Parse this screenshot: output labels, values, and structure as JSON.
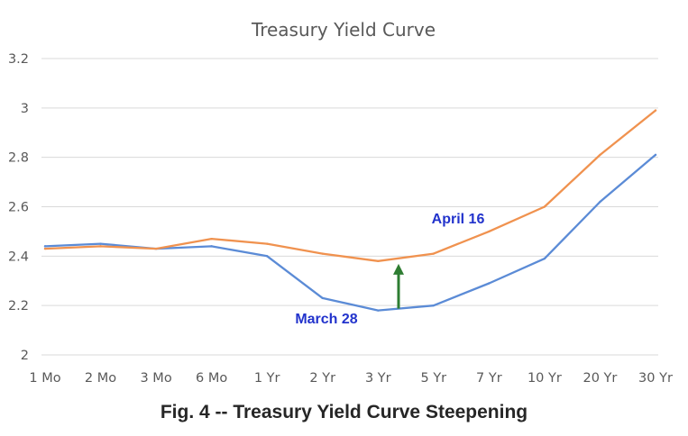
{
  "caption": "Fig. 4 -- Treasury Yield Curve Steepening",
  "chart_data": {
    "type": "line",
    "title": "Treasury Yield Curve",
    "xlabel": "",
    "ylabel": "",
    "categories": [
      "1 Mo",
      "2 Mo",
      "3 Mo",
      "6 Mo",
      "1 Yr",
      "2 Yr",
      "3 Yr",
      "5 Yr",
      "7 Yr",
      "10 Yr",
      "20 Yr",
      "30 Yr"
    ],
    "ylim": [
      2,
      3.2
    ],
    "yticks": [
      "2",
      "2.2",
      "2.4",
      "2.6",
      "2.8",
      "3",
      "3.2"
    ],
    "grid": true,
    "series": [
      {
        "name": "March 28",
        "color": "#5B8BD6",
        "values": [
          2.44,
          2.45,
          2.43,
          2.44,
          2.4,
          2.23,
          2.18,
          2.2,
          2.29,
          2.39,
          2.62,
          2.81
        ]
      },
      {
        "name": "April 16",
        "color": "#F0924F",
        "values": [
          2.43,
          2.44,
          2.43,
          2.47,
          2.45,
          2.41,
          2.38,
          2.41,
          2.5,
          2.6,
          2.81,
          2.99
        ]
      }
    ],
    "annotations": {
      "april_label": "April 16",
      "march_label": "March 28",
      "label_color": "#2233CC",
      "arrow_color": "#2E7D32"
    }
  }
}
